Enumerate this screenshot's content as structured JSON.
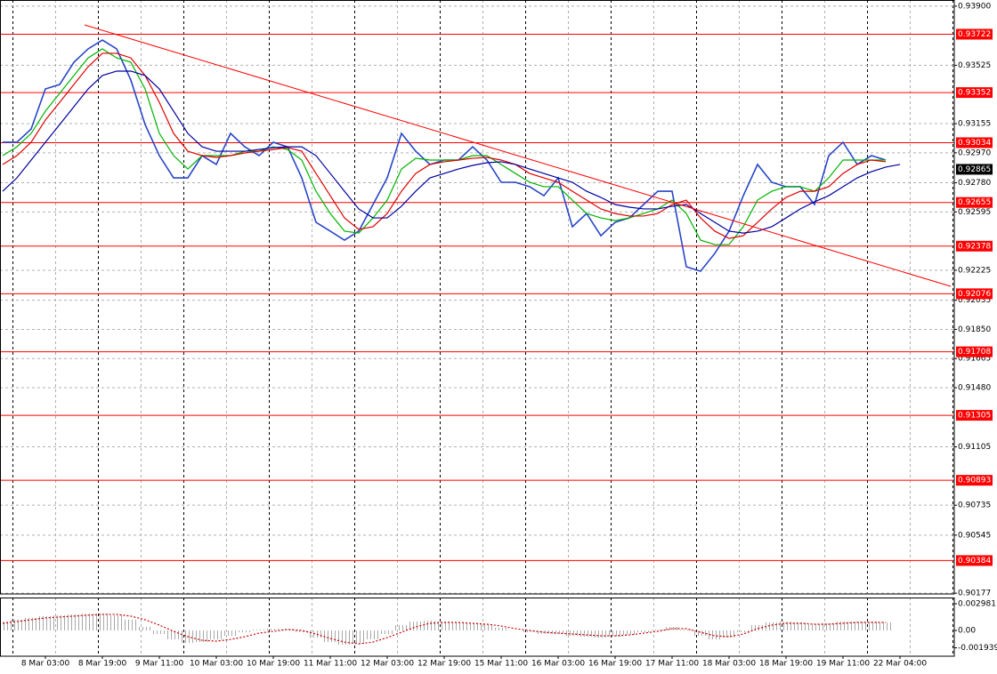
{
  "chart_data": [
    {
      "type": "line",
      "categories": [
        null,
        null,
        null,
        "8 Mar 03:00",
        null,
        null,
        null,
        "8 Mar 19:00",
        null,
        null,
        null,
        "9 Mar 11:00",
        null,
        null,
        null,
        "10 Mar 03:00",
        null,
        null,
        null,
        "10 Mar 19:00",
        null,
        null,
        null,
        "11 Mar 11:00",
        null,
        null,
        null,
        "12 Mar 03:00",
        null,
        null,
        null,
        "12 Mar 19:00",
        null,
        null,
        null,
        "15 Mar 11:00",
        null,
        null,
        null,
        "16 Mar 03:00",
        null,
        null,
        null,
        "16 Mar 19:00",
        null,
        null,
        null,
        "17 Mar 11:00",
        null,
        null,
        null,
        "18 Mar 03:00",
        null,
        null,
        null,
        "18 Mar 19:00",
        null,
        null,
        null,
        "19 Mar 11:00",
        null,
        null,
        null,
        "22 Mar 04:00"
      ],
      "series": [
        {
          "color": "#2846c8",
          "values": [
            0.93037,
            0.93037,
            0.93121,
            0.93375,
            0.93403,
            0.93544,
            0.93629,
            0.93685,
            0.93629,
            0.93431,
            0.93149,
            0.92952,
            0.92811,
            0.92811,
            0.92952,
            0.92896,
            0.93093,
            0.93008,
            0.92952,
            0.93037,
            0.93008,
            0.92811,
            0.92529,
            0.92473,
            0.92416,
            0.92473,
            0.92642,
            0.92811,
            0.93093,
            0.9298,
            0.92896,
            0.92924,
            0.92924,
            0.93008,
            0.92924,
            0.92783,
            0.92783,
            0.92755,
            0.92698,
            0.92811,
            0.92501,
            0.92585,
            0.92444,
            0.92529,
            0.92557,
            0.92642,
            0.92726,
            0.92726,
            0.92247,
            0.92219,
            0.92332,
            0.92473,
            0.92698,
            0.92896,
            0.92783,
            0.92755,
            0.92755,
            0.92642,
            0.92952,
            0.93037,
            0.92896,
            0.92952,
            0.92924,
            null
          ]
        },
        {
          "color": "#00b400",
          "values": [
            0.92952,
            0.93008,
            0.93093,
            0.93234,
            0.93347,
            0.9346,
            0.93572,
            0.93629,
            0.93572,
            0.93544,
            0.93375,
            0.93093,
            0.92952,
            0.92867,
            0.92952,
            0.92952,
            0.92952,
            0.9298,
            0.9298,
            0.93008,
            0.92991,
            0.92924,
            0.92726,
            0.92585,
            0.92473,
            0.92461,
            0.92557,
            0.9267,
            0.92867,
            0.92935,
            0.92924,
            0.92924,
            0.92924,
            0.92952,
            0.92952,
            0.92896,
            0.92839,
            0.92783,
            0.92755,
            0.92755,
            0.9267,
            0.92585,
            0.92557,
            0.9254,
            0.92557,
            0.92585,
            0.92614,
            0.9267,
            0.92585,
            0.92416,
            0.92388,
            0.92388,
            0.92501,
            0.9267,
            0.92726,
            0.92755,
            0.92755,
            0.92726,
            0.92811,
            0.92924,
            0.92924,
            0.92924,
            0.92924,
            null
          ]
        },
        {
          "color": "#e00000",
          "values": [
            0.92896,
            0.92952,
            0.93037,
            0.93178,
            0.9329,
            0.93403,
            0.93516,
            0.93601,
            0.93601,
            0.93572,
            0.9346,
            0.9329,
            0.93093,
            0.9298,
            0.92952,
            0.92941,
            0.92952,
            0.92969,
            0.9298,
            0.92991,
            0.93003,
            0.9298,
            0.92839,
            0.92698,
            0.92557,
            0.92484,
            0.92501,
            0.92585,
            0.92726,
            0.92839,
            0.92896,
            0.92913,
            0.92924,
            0.92935,
            0.92941,
            0.92924,
            0.92896,
            0.92839,
            0.92811,
            0.92783,
            0.92726,
            0.9267,
            0.92614,
            0.92585,
            0.92569,
            0.92569,
            0.92585,
            0.92642,
            0.9267,
            0.92557,
            0.92473,
            0.92427,
            0.92444,
            0.92529,
            0.92614,
            0.92687,
            0.92726,
            0.92726,
            0.92755,
            0.92839,
            0.92896,
            0.92924,
            0.92913,
            null
          ]
        },
        {
          "color": "#0000a0",
          "values": [
            0.92726,
            0.92811,
            0.92924,
            0.93037,
            0.93149,
            0.93262,
            0.93375,
            0.9346,
            0.93488,
            0.93488,
            0.9346,
            0.93375,
            0.93234,
            0.93093,
            0.93008,
            0.9298,
            0.9298,
            0.9298,
            0.92991,
            0.93003,
            0.93008,
            0.93008,
            0.92952,
            0.92839,
            0.92726,
            0.92614,
            0.92557,
            0.92557,
            0.92631,
            0.92726,
            0.92811,
            0.92839,
            0.92867,
            0.9289,
            0.92907,
            0.92913,
            0.92896,
            0.92867,
            0.92839,
            0.92811,
            0.92783,
            0.92726,
            0.92687,
            0.92642,
            0.92625,
            0.92614,
            0.92614,
            0.92631,
            0.92642,
            0.92585,
            0.92529,
            0.92473,
            0.92461,
            0.92473,
            0.92501,
            0.92557,
            0.92614,
            0.92659,
            0.92698,
            0.92755,
            0.92811,
            0.9285,
            0.92879,
            0.92896
          ]
        }
      ],
      "levels": [
        0.93722,
        0.93352,
        0.93034,
        0.92655,
        0.92378,
        0.92076,
        0.91708,
        0.91305,
        0.90893,
        0.90384
      ],
      "level_color": "#ff0000",
      "current_price": 0.92865,
      "trendline": {
        "x": [
          5.75,
          66.56
        ],
        "values": [
          0.93781,
          0.92123
        ],
        "color": "#ff0000"
      },
      "ylim": [
        0.90172,
        0.93939
      ],
      "yticks": [
        {
          "value": 0.939,
          "label": "0.93900"
        },
        0.93525,
        0.93155,
        {
          "value": 0.9297,
          "label": "0.92970"
        },
        {
          "value": 0.9278,
          "label": "0.92780"
        },
        0.92595,
        0.92225,
        0.92035,
        {
          "value": 0.9185,
          "label": "0.91850"
        },
        0.91665,
        {
          "value": 0.9148,
          "label": "0.91480"
        },
        0.91105,
        0.90735,
        0.90545,
        0.90177
      ],
      "grid": true
    },
    {
      "type": "bar",
      "color": "#a8a8a8",
      "values": [
        0.001,
        0.0012,
        0.0014,
        0.0016,
        0.0017,
        0.0018,
        0.0019,
        0.0019,
        0.0017,
        0.0012,
        0.0004,
        -0.0004,
        -0.001,
        -0.0014,
        -0.0013,
        -0.001,
        -0.0006,
        -0.0002,
        0.0001,
        0.0002,
        0.0002,
        -0.0002,
        -0.0008,
        -0.0013,
        -0.0016,
        -0.0015,
        -0.001,
        -0.0004,
        0.0006,
        0.001,
        0.0011,
        0.001,
        0.0009,
        0.0008,
        0.0007,
        0.0003,
        0.0,
        -0.0002,
        -0.0004,
        -0.0004,
        -0.0006,
        -0.0007,
        -0.0008,
        -0.0007,
        -0.0005,
        -0.0002,
        0.0001,
        0.0004,
        0.0001,
        -0.0006,
        -0.001,
        -0.0008,
        -0.0002,
        0.0006,
        0.0009,
        0.001,
        0.0009,
        0.0007,
        0.0008,
        0.001,
        0.001,
        0.001,
        0.0009,
        null
      ],
      "signal": {
        "color": "#cc0000",
        "values": [
          0.0008,
          0.001,
          0.0012,
          0.0014,
          0.0015,
          0.0016,
          0.0017,
          0.0018,
          0.0018,
          0.0016,
          0.0012,
          0.0006,
          -0.0001,
          -0.0007,
          -0.0011,
          -0.0012,
          -0.001,
          -0.0007,
          -0.0003,
          -0.0001,
          0.0001,
          0.0,
          -0.0004,
          -0.0009,
          -0.0013,
          -0.0015,
          -0.0013,
          -0.0008,
          -0.0002,
          0.0004,
          0.0008,
          0.0009,
          0.0009,
          0.0008,
          0.0007,
          0.0005,
          0.0002,
          0.0,
          -0.0002,
          -0.0003,
          -0.0004,
          -0.0005,
          -0.0006,
          -0.0006,
          -0.0005,
          -0.0003,
          -0.0001,
          0.0002,
          0.0002,
          -0.0002,
          -0.0006,
          -0.0007,
          -0.0004,
          0.0002,
          0.0006,
          0.0008,
          0.0008,
          0.0007,
          0.0007,
          0.0008,
          0.0009,
          0.0009,
          0.0009,
          null
        ]
      },
      "ylim": [
        -0.00288,
        0.00368
      ],
      "yticks": [
        0.002981,
        {
          "value": 0,
          "label": "0.00"
        },
        -0.001939
      ]
    }
  ]
}
